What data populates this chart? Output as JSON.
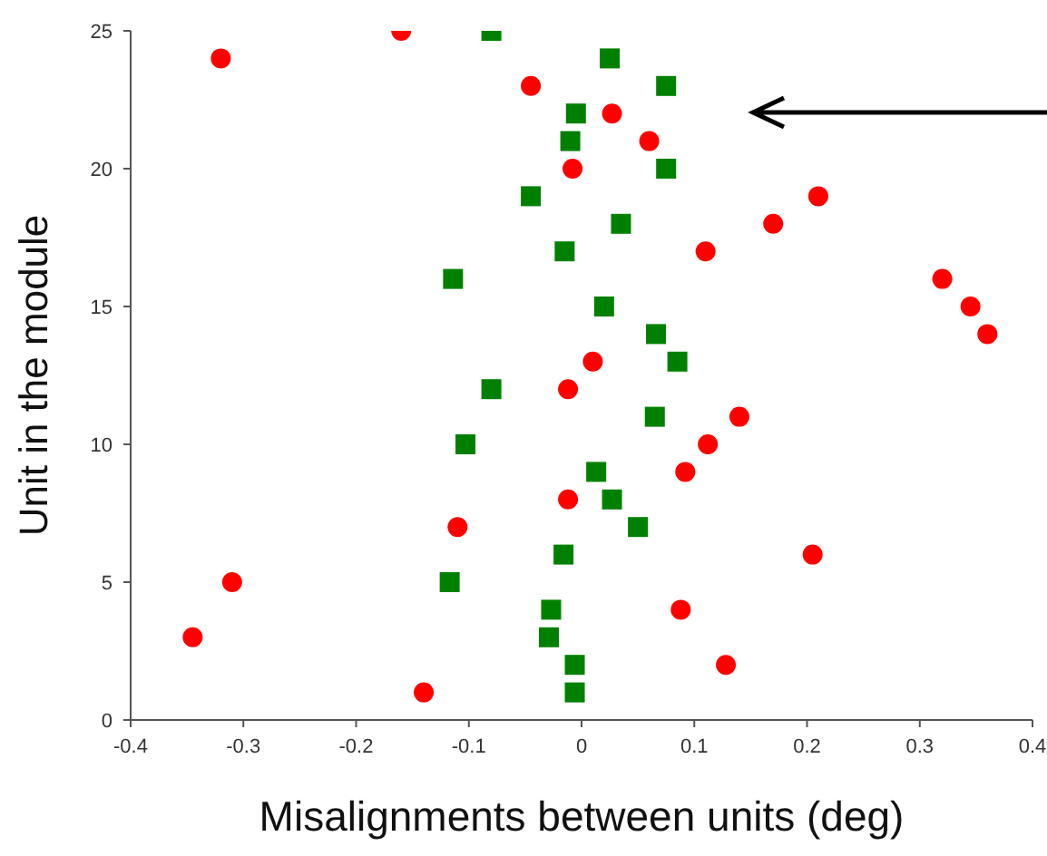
{
  "chart_data": {
    "type": "scatter",
    "xlabel": "Misalignments between units (deg)",
    "ylabel": "Unit in the module",
    "xlim": [
      -0.4,
      0.4
    ],
    "xticks": [
      -0.4,
      -0.3,
      -0.2,
      -0.1,
      0,
      0.1,
      0.2,
      0.3,
      0.4
    ],
    "ylim": [
      0,
      25
    ],
    "yticks": [
      0,
      5,
      10,
      15,
      20,
      25
    ],
    "grid": false,
    "legend": false,
    "series": [
      {
        "color": "#ff0000",
        "marker": "circle",
        "x": [
          -0.16,
          -0.32,
          -0.045,
          0.027,
          0.06,
          -0.008,
          0.21,
          0.17,
          0.11,
          0.32,
          0.345,
          0.36,
          0.01,
          -0.012,
          0.14,
          0.112,
          0.092,
          -0.012,
          -0.11,
          0.205,
          -0.31,
          0.088,
          -0.345,
          0.128,
          -0.14
        ],
        "values": [
          25,
          24,
          23,
          22,
          21,
          20,
          19,
          18,
          17,
          16,
          15,
          14,
          13,
          12,
          11,
          10,
          9,
          8,
          7,
          6,
          5,
          4,
          3,
          2,
          1
        ]
      },
      {
        "color": "#008000",
        "marker": "square",
        "x": [
          -0.08,
          0.025,
          0.075,
          -0.005,
          -0.01,
          0.075,
          -0.045,
          0.035,
          -0.015,
          -0.114,
          0.02,
          0.066,
          0.085,
          -0.08,
          0.065,
          -0.103,
          0.013,
          0.027,
          0.05,
          -0.016,
          -0.117,
          -0.027,
          -0.029,
          -0.006,
          -0.006
        ],
        "values": [
          25,
          24,
          23,
          22,
          21,
          20,
          19,
          18,
          17,
          16,
          15,
          14,
          13,
          12,
          11,
          10,
          9,
          8,
          7,
          6,
          5,
          4,
          3,
          2,
          1
        ]
      }
    ]
  }
}
